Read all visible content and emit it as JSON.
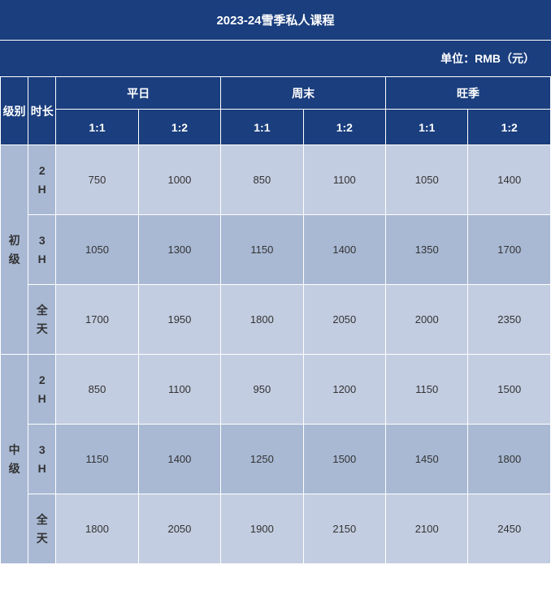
{
  "title": "2023-24雪季私人课程",
  "unit_label": "单位：RMB（元）",
  "headers": {
    "level": "级别",
    "duration": "时长",
    "periods": [
      "平日",
      "周末",
      "旺季"
    ],
    "ratios": [
      "1:1",
      "1:2",
      "1:1",
      "1:2",
      "1:1",
      "1:2"
    ]
  },
  "levels": [
    {
      "name": "初级",
      "durations": [
        {
          "label": "2H",
          "values": [
            750,
            1000,
            850,
            1100,
            1050,
            1400
          ]
        },
        {
          "label": "3H",
          "values": [
            1050,
            1300,
            1150,
            1400,
            1350,
            1700
          ]
        },
        {
          "label": "全天",
          "values": [
            1700,
            1950,
            1800,
            2050,
            2000,
            2350
          ]
        }
      ]
    },
    {
      "name": "中级",
      "durations": [
        {
          "label": "2H",
          "values": [
            850,
            1100,
            950,
            1200,
            1150,
            1500
          ]
        },
        {
          "label": "3H",
          "values": [
            1150,
            1400,
            1250,
            1500,
            1450,
            1800
          ]
        },
        {
          "label": "全天",
          "values": [
            1800,
            2050,
            1900,
            2150,
            2100,
            2450
          ]
        }
      ]
    }
  ],
  "colors": {
    "header_bg": "#1a3e7e",
    "row_label_bg": "#a9b9d4",
    "data_a_bg": "#c3cde1",
    "data_b_bg": "#a9b9d4",
    "border": "#ffffff"
  }
}
